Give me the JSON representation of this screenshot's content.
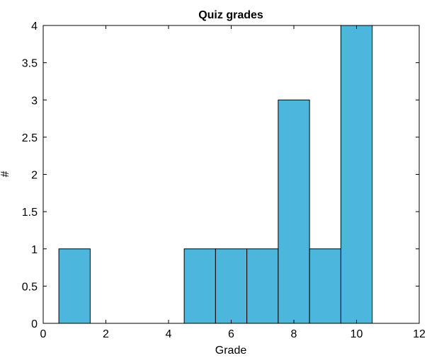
{
  "chart_data": {
    "type": "bar",
    "title": "Quiz grades",
    "xlabel": "Grade",
    "ylabel": "#",
    "xlim": [
      0,
      12
    ],
    "ylim": [
      0,
      4
    ],
    "x_ticks": [
      "0",
      "2",
      "4",
      "6",
      "8",
      "10",
      "12"
    ],
    "y_ticks": [
      "0",
      "0.5",
      "1",
      "1.5",
      "2",
      "2.5",
      "3",
      "3.5",
      "4"
    ],
    "bins": [
      {
        "x": 1,
        "value": 1
      },
      {
        "x": 2,
        "value": 0
      },
      {
        "x": 3,
        "value": 0
      },
      {
        "x": 4,
        "value": 0
      },
      {
        "x": 5,
        "value": 1
      },
      {
        "x": 6,
        "value": 1
      },
      {
        "x": 7,
        "value": 1
      },
      {
        "x": 8,
        "value": 3
      },
      {
        "x": 9,
        "value": 1
      },
      {
        "x": 10,
        "value": 4
      }
    ],
    "bin_width": 1,
    "bar_color": "#4db6dc",
    "edge_color": "#000000",
    "grid": false
  }
}
